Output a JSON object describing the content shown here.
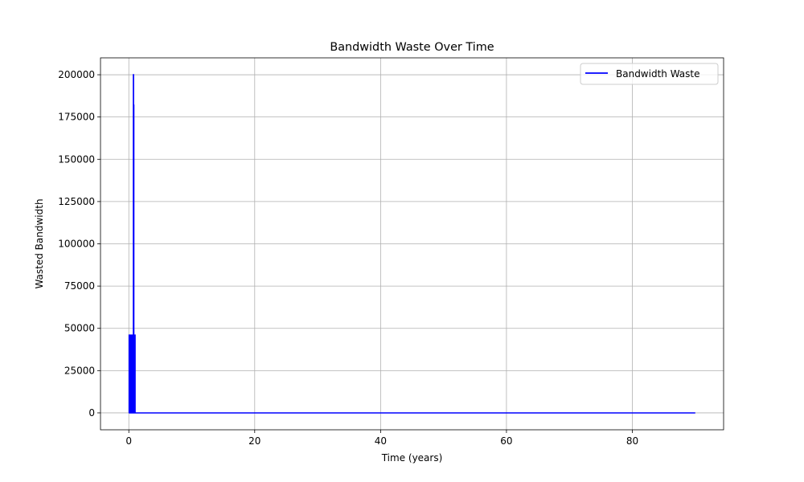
{
  "chart_data": {
    "type": "line",
    "title": "Bandwidth Waste Over Time",
    "xlabel": "Time (years)",
    "ylabel": "Wasted Bandwidth",
    "xlim": [
      -4.5,
      94.5
    ],
    "ylim": [
      -10000,
      210000
    ],
    "xticks": [
      0,
      20,
      40,
      60,
      80
    ],
    "yticks": [
      0,
      25000,
      50000,
      75000,
      100000,
      125000,
      150000,
      175000,
      200000
    ],
    "grid": true,
    "legend": "top-right",
    "series": [
      {
        "name": "Bandwidth Waste",
        "color": "#0000ff",
        "x": [
          0,
          0.05,
          0.05,
          0.1,
          0.1,
          0.15,
          0.15,
          0.2,
          0.2,
          0.25,
          0.25,
          0.3,
          0.3,
          0.35,
          0.35,
          0.4,
          0.4,
          0.45,
          0.45,
          0.5,
          0.5,
          0.55,
          0.55,
          0.6,
          0.6,
          0.65,
          0.65,
          0.7,
          0.7,
          0.72,
          0.72,
          0.75,
          0.75,
          0.78,
          0.78,
          0.8,
          0.8,
          0.83,
          0.83,
          0.86,
          0.86,
          0.9,
          0.9,
          1.0,
          1.0,
          90
        ],
        "y": [
          0,
          0,
          46000,
          46000,
          0,
          0,
          46000,
          46000,
          0,
          0,
          46000,
          46000,
          0,
          0,
          46000,
          46000,
          0,
          0,
          46000,
          46000,
          0,
          0,
          46000,
          46000,
          0,
          0,
          46000,
          46000,
          0,
          0,
          200000,
          200000,
          0,
          0,
          182000,
          182000,
          0,
          0,
          46000,
          46000,
          0,
          0,
          46000,
          46000,
          0,
          0
        ]
      }
    ]
  }
}
